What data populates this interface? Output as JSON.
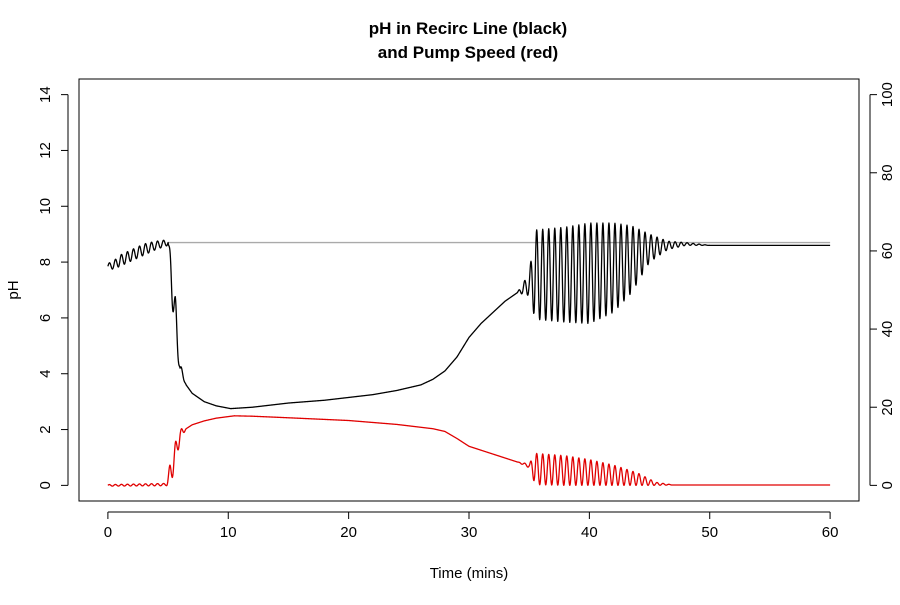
{
  "chart_data": {
    "type": "line",
    "title_line1": "pH in Recirc Line (black)",
    "title_line2": "and Pump Speed (red)",
    "xlabel": "Time (mins)",
    "ylabel": "pH",
    "y2label": "",
    "xlim": [
      -2.4,
      62.4
    ],
    "ylim": [
      -0.56,
      14.56
    ],
    "y2lim": [
      -4,
      104
    ],
    "xticks": [
      "0",
      "10",
      "20",
      "30",
      "40",
      "50",
      "60"
    ],
    "yticks": [
      "0",
      "2",
      "4",
      "6",
      "8",
      "10",
      "12",
      "14"
    ],
    "y2ticks": [
      "0",
      "20",
      "40",
      "60",
      "80",
      "100"
    ],
    "grid": false,
    "series": [
      {
        "name": "",
        "axis": "left",
        "color": "#aaaaaa",
        "x": [
          5.0,
          60.0
        ],
        "y": [
          8.7,
          8.7
        ]
      },
      {
        "name": "",
        "axis": "left",
        "color": "#000000",
        "x": [
          0,
          0.5,
          1,
          2,
          3,
          4,
          5,
          5.3,
          5.6,
          6.0,
          6.5,
          7,
          8,
          9,
          10.2,
          12,
          15,
          18,
          20,
          22,
          24,
          26,
          27,
          28,
          29,
          30,
          31,
          32,
          33,
          34,
          35,
          35.5,
          38,
          40,
          42,
          43.5,
          45,
          46.5,
          48,
          50,
          60
        ],
        "y": [
          7.85,
          7.9,
          8.05,
          8.25,
          8.45,
          8.6,
          8.7,
          7.4,
          6.0,
          4.2,
          3.6,
          3.3,
          3.0,
          2.85,
          2.75,
          2.8,
          2.95,
          3.05,
          3.15,
          3.25,
          3.4,
          3.6,
          3.8,
          4.1,
          4.6,
          5.3,
          5.8,
          6.2,
          6.6,
          6.9,
          7.2,
          7.55,
          7.55,
          7.6,
          7.8,
          8.1,
          8.5,
          8.6,
          8.65,
          8.6,
          8.6
        ],
        "osc_amp": [
          0.1,
          0.15,
          0.2,
          0.2,
          0.2,
          0.15,
          0.1,
          0.7,
          0.8,
          0.2,
          0,
          0,
          0,
          0,
          0,
          0,
          0,
          0,
          0,
          0,
          0,
          0,
          0,
          0,
          0,
          0,
          0,
          0,
          0,
          0,
          0.4,
          1.6,
          1.7,
          1.8,
          1.6,
          1.2,
          0.5,
          0.15,
          0.05,
          0,
          0
        ]
      },
      {
        "name": "",
        "axis": "right",
        "color": "#e00000",
        "x": [
          0,
          4.8,
          5.2,
          5.6,
          6.0,
          6.5,
          7,
          8,
          9,
          10,
          10.5,
          12,
          15,
          20,
          24,
          27,
          28,
          29,
          30,
          32,
          34,
          35,
          35.5,
          38,
          40,
          42,
          44,
          45.5,
          47,
          48,
          60
        ],
        "y": [
          0.0,
          0.2,
          3.0,
          8.0,
          13.0,
          14.5,
          15.5,
          16.5,
          17.2,
          17.6,
          17.8,
          17.7,
          17.3,
          16.6,
          15.6,
          14.5,
          13.8,
          12.0,
          10.0,
          8.0,
          6.0,
          5.0,
          4.2,
          3.8,
          3.3,
          2.6,
          1.6,
          0.4,
          0.1,
          0.1,
          0.1
        ],
        "osc_amp": [
          0.2,
          0.3,
          3.0,
          3.0,
          1.5,
          0,
          0,
          0,
          0,
          0,
          0,
          0,
          0,
          0,
          0,
          0,
          0,
          0,
          0,
          0,
          0,
          0.5,
          4.0,
          3.8,
          3.3,
          2.6,
          1.6,
          0.4,
          0,
          0,
          0
        ]
      }
    ]
  }
}
